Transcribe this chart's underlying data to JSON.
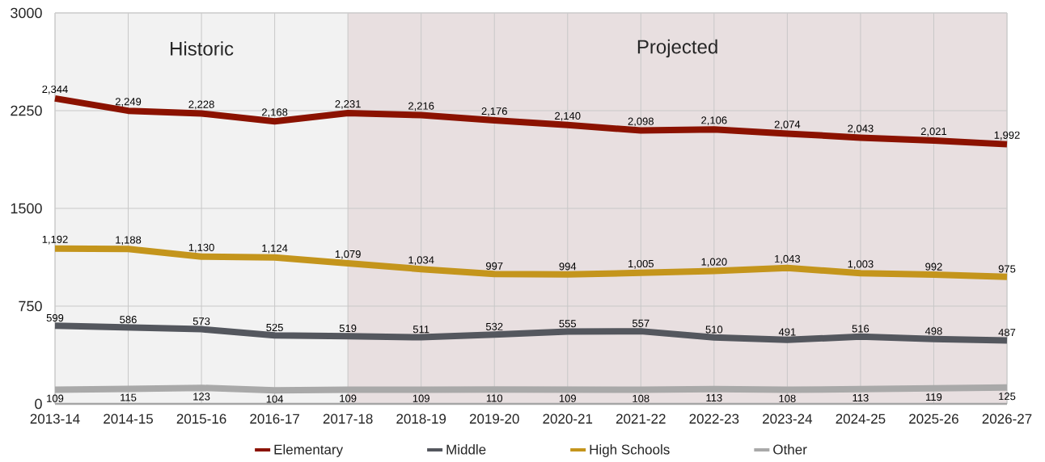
{
  "chart_data": {
    "type": "line",
    "categories": [
      "2013-14",
      "2014-15",
      "2015-16",
      "2016-17",
      "2017-18",
      "2018-19",
      "2019-20",
      "2020-21",
      "2021-22",
      "2022-23",
      "2023-24",
      "2024-25",
      "2025-26",
      "2026-27"
    ],
    "ylim": [
      0,
      3000
    ],
    "yticks": [
      0,
      750,
      1500,
      2250,
      3000
    ],
    "grid": true,
    "legend": "bottom",
    "series": [
      {
        "name": "Elementary",
        "color": "#8b1200",
        "values": [
          2344,
          2249,
          2228,
          2168,
          2231,
          2216,
          2176,
          2140,
          2098,
          2106,
          2074,
          2043,
          2021,
          1992
        ],
        "value_labels": [
          "2,344",
          "2,249",
          "2,228",
          "2,168",
          "2,231",
          "2,216",
          "2,176",
          "2,140",
          "2,098",
          "2,106",
          "2,074",
          "2,043",
          "2,021",
          "1,992"
        ]
      },
      {
        "name": "Middle",
        "color": "#54575e",
        "values": [
          599,
          586,
          573,
          525,
          519,
          511,
          532,
          555,
          557,
          510,
          491,
          516,
          498,
          487
        ],
        "value_labels": [
          "599",
          "586",
          "573",
          "525",
          "519",
          "511",
          "532",
          "555",
          "557",
          "510",
          "491",
          "516",
          "498",
          "487"
        ]
      },
      {
        "name": "High Schools",
        "color": "#c4951c",
        "values": [
          1192,
          1188,
          1130,
          1124,
          1079,
          1034,
          997,
          994,
          1005,
          1020,
          1043,
          1003,
          992,
          975
        ],
        "value_labels": [
          "1,192",
          "1,188",
          "1,130",
          "1,124",
          "1,079",
          "1,034",
          "997",
          "994",
          "1,005",
          "1,020",
          "1,043",
          "1,003",
          "992",
          "975"
        ]
      },
      {
        "name": "Other",
        "color": "#a9a9a9",
        "values": [
          109,
          115,
          123,
          104,
          109,
          109,
          110,
          109,
          108,
          113,
          108,
          113,
          119,
          125
        ],
        "value_labels": [
          "109",
          "115",
          "123",
          "104",
          "109",
          "109",
          "110",
          "109",
          "108",
          "113",
          "108",
          "113",
          "119",
          "125"
        ]
      }
    ],
    "bands": [
      {
        "axis": "x",
        "from": "2013-14",
        "to": "2017-18",
        "label": "Historic",
        "color": "#f2f2f2"
      },
      {
        "axis": "x",
        "from": "2017-18",
        "to": "2026-27",
        "label": "Projected",
        "color": "#e8dfe0"
      }
    ]
  }
}
